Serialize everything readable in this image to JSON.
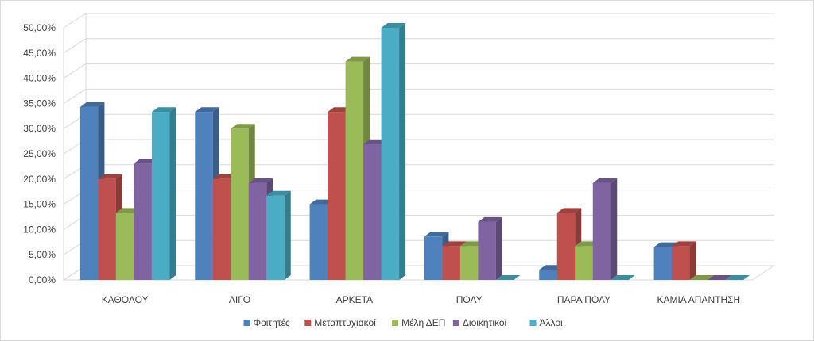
{
  "chart_data": {
    "type": "bar",
    "categories": [
      "ΚΑΘΟΛΟΥ",
      "ΛΙΓΟ",
      "ΑΡΚΕΤΑ",
      "ΠΟΛΥ",
      "ΠΑΡΑ ΠΟΛΥ",
      "ΚΑΜΙΑ ΑΠΑΝΤΗΣΗ"
    ],
    "series": [
      {
        "name": "Φοιτητές",
        "color": "#4F81BD",
        "values": [
          34.3,
          33.3,
          15.0,
          8.6,
          2.0,
          6.5
        ]
      },
      {
        "name": "Μεταπτυχιακοί",
        "color": "#C0504D",
        "values": [
          20.0,
          20.0,
          33.3,
          6.7,
          13.3,
          6.7
        ]
      },
      {
        "name": "Μέλη ΔΕΠ",
        "color": "#9BBB59",
        "values": [
          13.3,
          30.0,
          43.3,
          6.7,
          6.7,
          0.0
        ]
      },
      {
        "name": "Διοικητικοί",
        "color": "#8064A2",
        "values": [
          23.1,
          19.2,
          26.9,
          11.5,
          19.2,
          0.0
        ]
      },
      {
        "name": "Άλλοι",
        "color": "#4BACC6",
        "values": [
          33.3,
          16.7,
          50.0,
          0.0,
          0.0,
          0.0
        ]
      }
    ],
    "yticks": [
      "0,00%",
      "5,00%",
      "10,00%",
      "15,00%",
      "20,00%",
      "25,00%",
      "30,00%",
      "35,00%",
      "40,00%",
      "45,00%",
      "50,00%"
    ],
    "ylim": [
      0,
      50
    ],
    "grid": true,
    "legend": "bottom",
    "title": "",
    "xlabel": "",
    "ylabel": ""
  }
}
